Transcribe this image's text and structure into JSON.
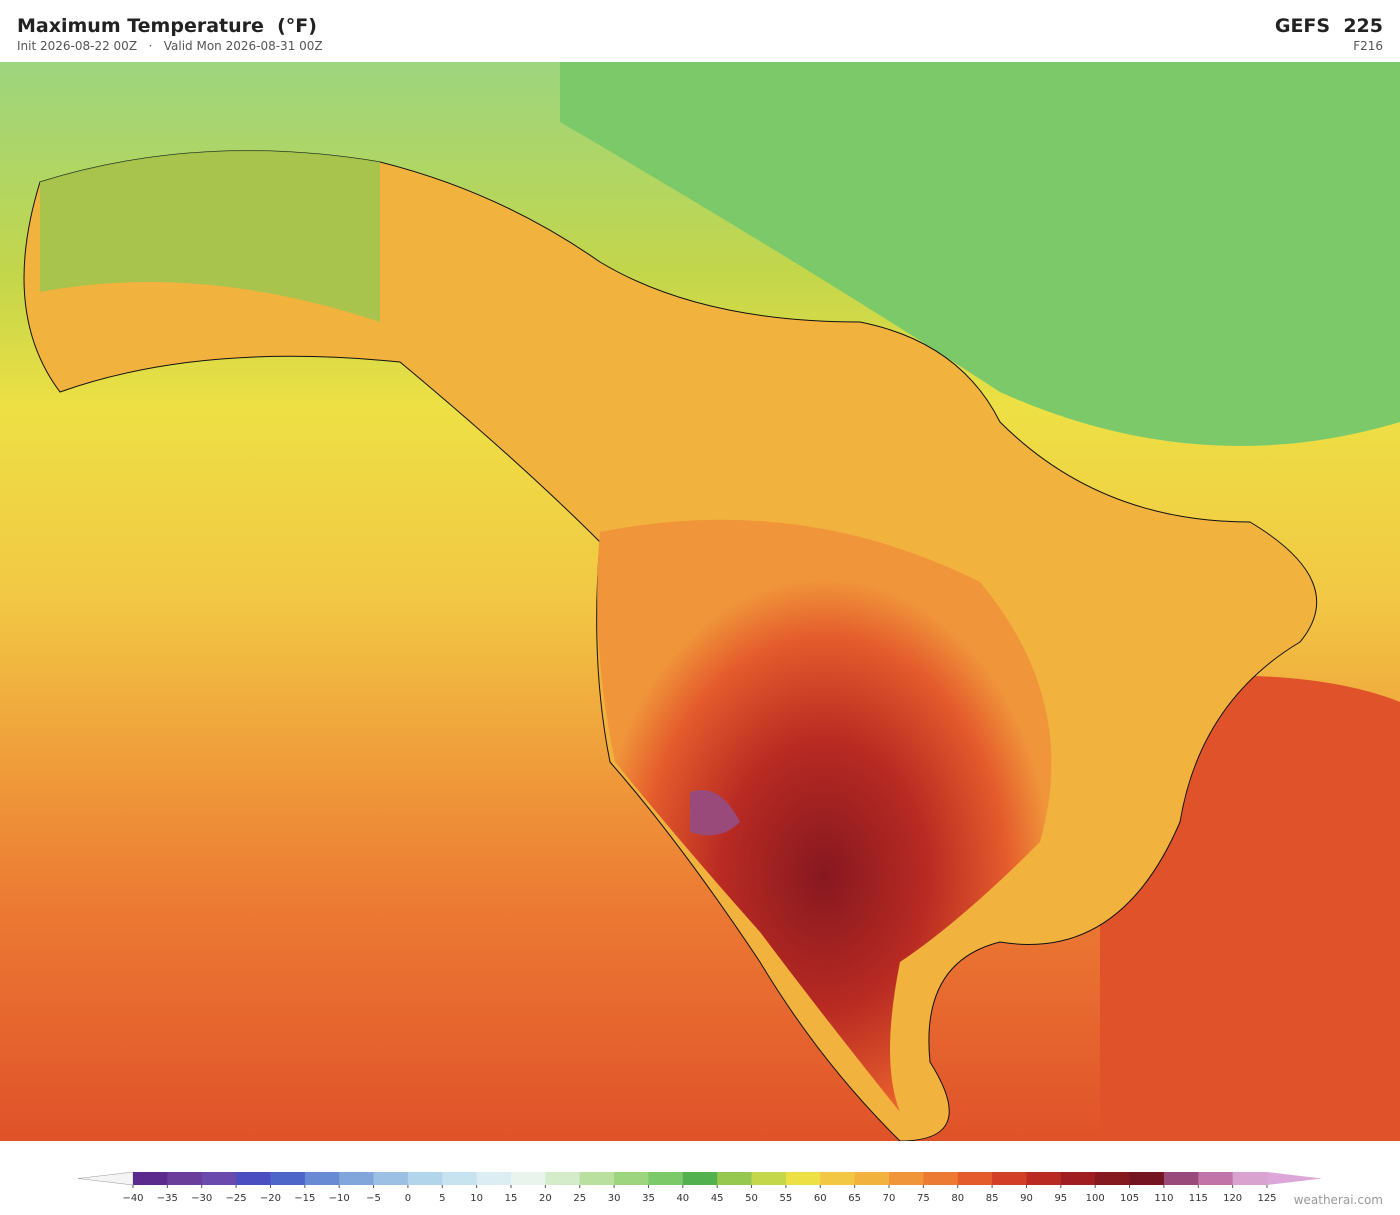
{
  "header": {
    "title": "Maximum Temperature  (°F)",
    "subtitle": "Init 2026-08-22 00Z   ·   Valid Mon 2026-08-31 00Z",
    "model": "GEFS  225",
    "forecast_hour": "F216"
  },
  "colorbar": {
    "ticks": [
      {
        "value": -40,
        "label": "−40"
      },
      {
        "value": -35,
        "label": "−35"
      },
      {
        "value": -30,
        "label": "−30"
      },
      {
        "value": -25,
        "label": "−25"
      },
      {
        "value": -20,
        "label": "−20"
      },
      {
        "value": -15,
        "label": "−15"
      },
      {
        "value": -10,
        "label": "−10"
      },
      {
        "value": -5,
        "label": "−5"
      },
      0,
      5,
      10,
      15,
      20,
      25,
      30,
      35,
      40,
      45,
      50,
      55,
      60,
      65,
      70,
      75,
      80,
      85,
      90,
      95,
      100,
      105,
      110,
      115,
      120,
      125
    ],
    "colors": [
      "#5b2a8c",
      "#6a3d9a",
      "#6b4aae",
      "#4a4ec0",
      "#4d64c9",
      "#6889d4",
      "#80a6db",
      "#9bc0e4",
      "#b3d5ec",
      "#c8e3f0",
      "#dcedf3",
      "#e8f4ec",
      "#d4ecc9",
      "#b9e09e",
      "#9dd57e",
      "#7cc96a",
      "#52b04f",
      "#96c850",
      "#c4d64a",
      "#ede044",
      "#f2c744",
      "#f2b23e",
      "#f0953a",
      "#ec7a33",
      "#e45b2c",
      "#d23f26",
      "#b82a22",
      "#a01e20",
      "#861820",
      "#761522",
      "#9a4a7a",
      "#c074a8",
      "#d9a3d0"
    ],
    "under_color": "#f4f4f4",
    "over_color": "#dca6d8"
  },
  "watermark": "weatherai.com"
}
